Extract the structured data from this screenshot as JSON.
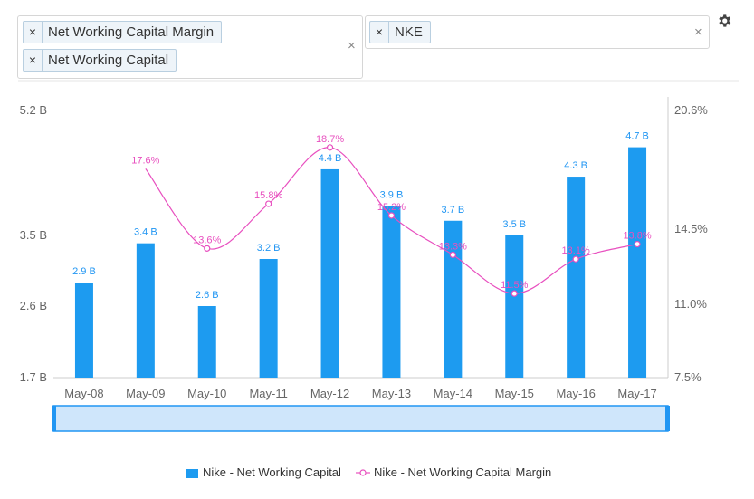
{
  "metric_picker": {
    "tags": [
      "Net Working Capital Margin",
      "Net Working Capital"
    ],
    "remove_symbol": "×",
    "clear_symbol": "×"
  },
  "company_picker": {
    "tags": [
      "NKE"
    ],
    "remove_symbol": "×",
    "clear_symbol": "×"
  },
  "icons": {
    "settings": "gear-icon"
  },
  "colors": {
    "bars": "#1d9bf0",
    "line": "#e84fbf",
    "navigator": "#cfe6fb",
    "navigator_border": "#2196f3"
  },
  "chart_data": {
    "type": "bar",
    "categories": [
      "May-08",
      "May-09",
      "May-10",
      "May-11",
      "May-12",
      "May-13",
      "May-14",
      "May-15",
      "May-16",
      "May-17"
    ],
    "series": [
      {
        "name": "Nike - Net Working Capital",
        "type": "bar",
        "axis": "left",
        "values": [
          2.9,
          3.4,
          2.6,
          3.2,
          4.4,
          3.9,
          3.7,
          3.5,
          4.3,
          4.7
        ],
        "labels": [
          "2.9 B",
          "3.4 B",
          "2.6 B",
          "3.2 B",
          "4.4 B",
          "3.9 B",
          "3.7 B",
          "3.5 B",
          "4.3 B",
          "4.7 B"
        ]
      },
      {
        "name": "Nike - Net Working Capital Margin",
        "type": "line",
        "axis": "right",
        "values": [
          null,
          17.6,
          13.6,
          15.8,
          18.7,
          15.2,
          13.3,
          11.5,
          13.1,
          13.8
        ],
        "labels": [
          "",
          "17.6%",
          "13.6%",
          "15.8%",
          "18.7%",
          "15.2%",
          "13.3%",
          "11.5%",
          "13.1%",
          "13.8%"
        ]
      }
    ],
    "y_left": {
      "ticks": [
        "5.2 B",
        "3.5 B",
        "2.6 B",
        "1.7 B"
      ],
      "tick_values": [
        5.2,
        3.5,
        2.6,
        1.7
      ],
      "range": [
        1.7,
        5.2
      ]
    },
    "y_right": {
      "ticks": [
        "20.6%",
        "14.5%",
        "11.0%",
        "7.5%"
      ],
      "tick_values": [
        20.6,
        14.5,
        11.0,
        7.5
      ],
      "range": [
        7.5,
        20.6
      ]
    },
    "legend": {
      "position": "bottom",
      "items": [
        "Nike - Net Working Capital",
        "Nike - Net Working Capital Margin"
      ]
    }
  }
}
